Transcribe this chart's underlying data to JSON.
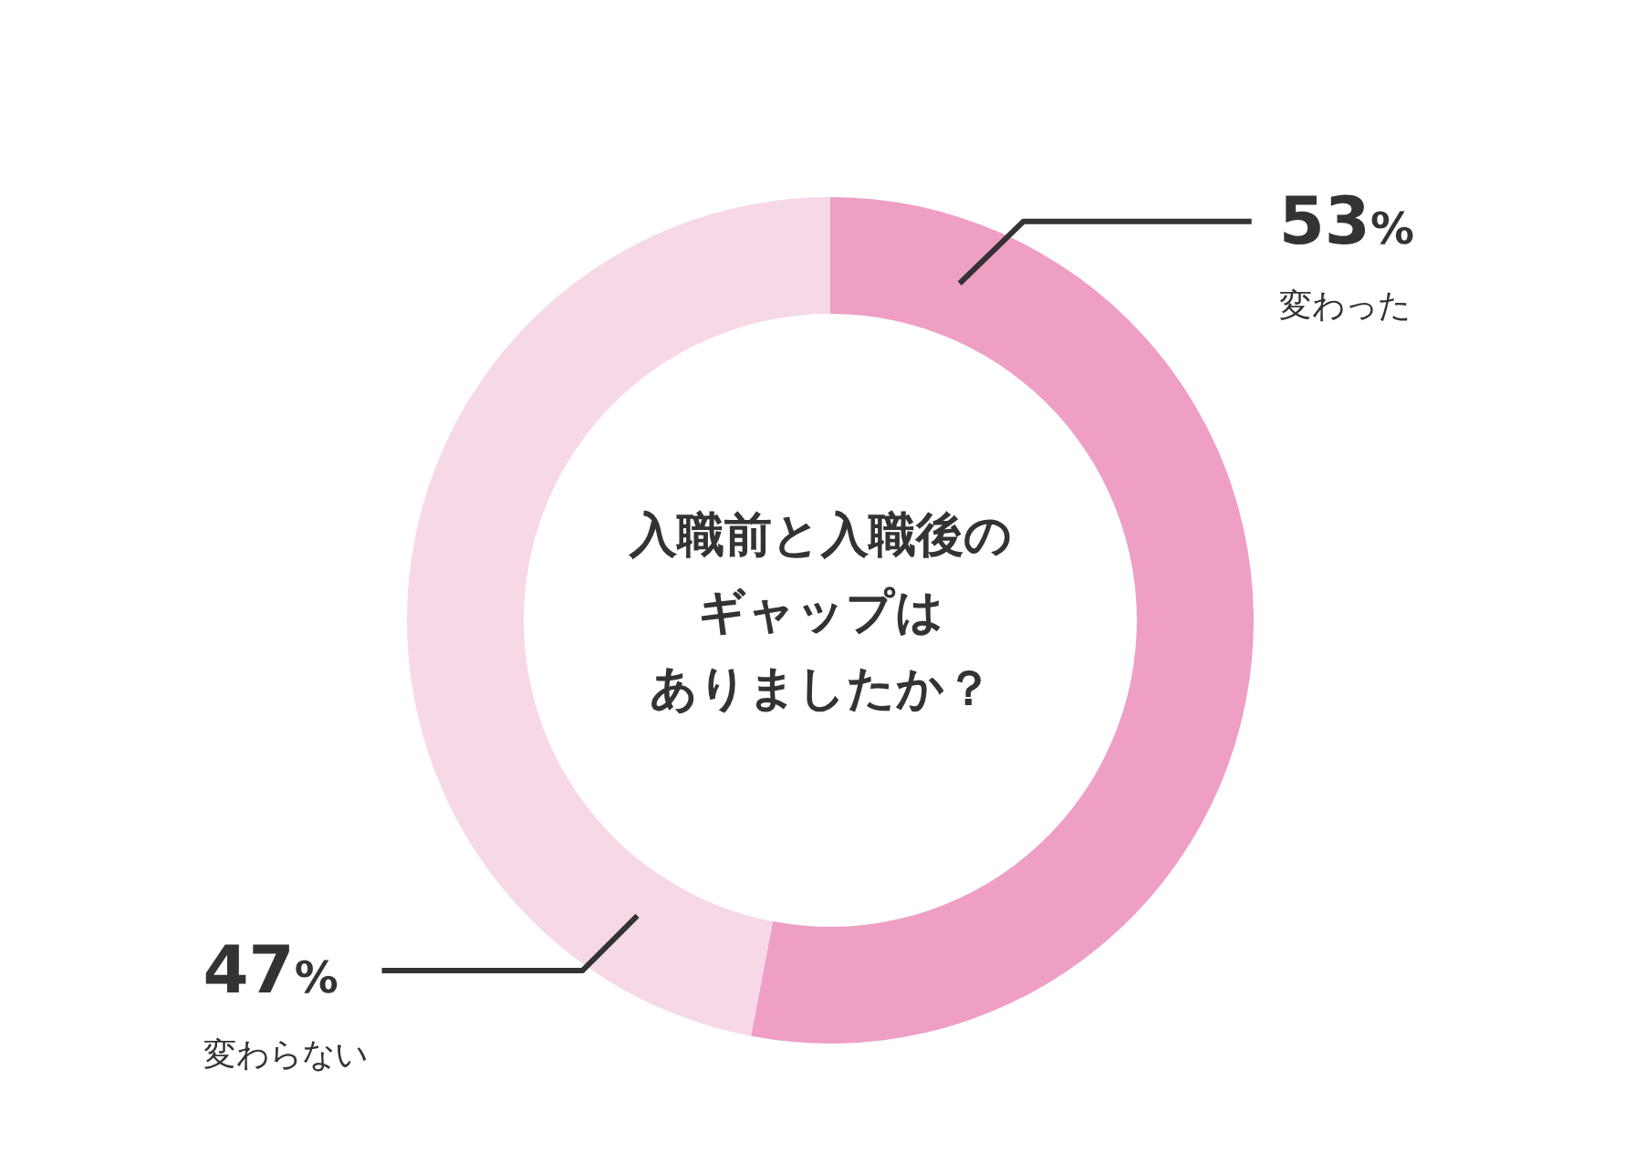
{
  "chart_data": {
    "type": "donut",
    "title": "入職前と入職後のギャップはありましたか？",
    "categories": [
      "変わった",
      "変わらない"
    ],
    "values": [
      53,
      47
    ],
    "colors": [
      "#ee9fc3",
      "#f7d8e7"
    ],
    "value_labels": [
      "53%",
      "47%"
    ]
  }
}
